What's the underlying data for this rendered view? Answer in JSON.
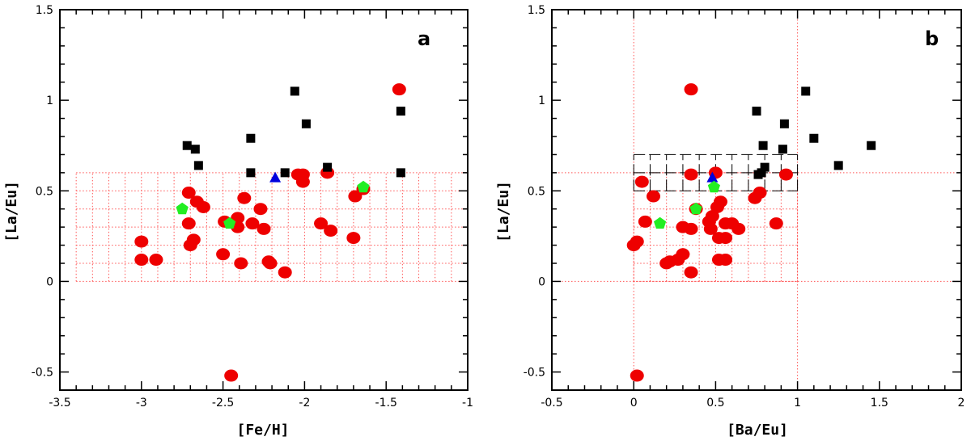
{
  "colors": {
    "red_circle": "#ee0000",
    "black_square": "#000000",
    "blue_triangle": "#0000dd",
    "green_pentagon": "#22ee22",
    "grid": "#ff5555",
    "box": "#000000"
  },
  "chart_data": [
    {
      "type": "scatter",
      "panel": "a",
      "xlabel": "[Fe/H]",
      "ylabel": "[La/Eu]",
      "xlim": [
        -3.5,
        -1
      ],
      "ylim": [
        -0.6,
        1.5
      ],
      "xticks": [
        -3.5,
        -3,
        -2.5,
        -2,
        -1.5,
        -1
      ],
      "xtick_labels": [
        "-3.5",
        "-3",
        "-2.5",
        "-2",
        "-1.5",
        "-1"
      ],
      "yticks": [
        -0.5,
        0,
        0.5,
        1,
        1.5
      ],
      "ytick_labels": [
        "-0.5",
        "0",
        "0.5",
        "1",
        "1.5"
      ],
      "shaded_grid": {
        "x": [
          -3.4,
          -1.0
        ],
        "y": [
          0.0,
          0.6
        ],
        "dx": 0.1,
        "dy": 0.1
      },
      "series": [
        {
          "name": "red circles",
          "marker": "circle",
          "color": "#ee0000",
          "points": [
            [
              -1.42,
              1.06
            ],
            [
              -1.86,
              0.6
            ],
            [
              -2.04,
              0.59
            ],
            [
              -2.01,
              0.59
            ],
            [
              -2.01,
              0.55
            ],
            [
              -1.64,
              0.51
            ],
            [
              -1.69,
              0.47
            ],
            [
              -2.71,
              0.49
            ],
            [
              -2.37,
              0.46
            ],
            [
              -2.66,
              0.44
            ],
            [
              -2.62,
              0.41
            ],
            [
              -2.27,
              0.4
            ],
            [
              -2.71,
              0.32
            ],
            [
              -2.49,
              0.33
            ],
            [
              -2.41,
              0.35
            ],
            [
              -2.41,
              0.3
            ],
            [
              -2.32,
              0.32
            ],
            [
              -2.25,
              0.29
            ],
            [
              -1.9,
              0.32
            ],
            [
              -1.84,
              0.28
            ],
            [
              -2.68,
              0.23
            ],
            [
              -2.7,
              0.2
            ],
            [
              -3.0,
              0.22
            ],
            [
              -1.7,
              0.24
            ],
            [
              -2.5,
              0.15
            ],
            [
              -3.0,
              0.12
            ],
            [
              -2.91,
              0.12
            ],
            [
              -2.39,
              0.1
            ],
            [
              -2.22,
              0.11
            ],
            [
              -2.21,
              0.1
            ],
            [
              -2.12,
              0.05
            ],
            [
              -2.45,
              -0.52
            ]
          ]
        },
        {
          "name": "black squares",
          "marker": "square",
          "color": "#000000",
          "points": [
            [
              -2.06,
              1.05
            ],
            [
              -1.41,
              0.94
            ],
            [
              -1.99,
              0.87
            ],
            [
              -2.33,
              0.79
            ],
            [
              -2.72,
              0.75
            ],
            [
              -2.67,
              0.73
            ],
            [
              -2.65,
              0.64
            ],
            [
              -1.86,
              0.63
            ],
            [
              -2.33,
              0.6
            ],
            [
              -2.12,
              0.6
            ],
            [
              -1.41,
              0.6
            ]
          ]
        },
        {
          "name": "blue triangle",
          "marker": "triangle",
          "color": "#0000dd",
          "points": [
            [
              -2.18,
              0.57
            ]
          ]
        },
        {
          "name": "green pentagons",
          "marker": "pentagon",
          "color": "#22ee22",
          "points": [
            [
              -1.64,
              0.52
            ],
            [
              -2.75,
              0.4
            ],
            [
              -2.46,
              0.32
            ]
          ]
        }
      ]
    },
    {
      "type": "scatter",
      "panel": "b",
      "xlabel": "[Ba/Eu]",
      "ylabel": "[La/Eu]",
      "xlim": [
        -0.5,
        2
      ],
      "ylim": [
        -0.6,
        1.5
      ],
      "xticks": [
        -0.5,
        0,
        0.5,
        1,
        1.5,
        2
      ],
      "xtick_labels": [
        "-0.5",
        "0",
        "0.5",
        "1",
        "1.5",
        "2"
      ],
      "yticks": [
        -0.5,
        0,
        0.5,
        1,
        1.5
      ],
      "ytick_labels": [
        "-0.5",
        "0",
        "0.5",
        "1",
        "1.5"
      ],
      "reference_lines": {
        "x": [
          0,
          1
        ],
        "y": [
          0,
          0.6
        ]
      },
      "shaded_grid": {
        "x": [
          0.0,
          1.0
        ],
        "y": [
          0.0,
          0.6
        ],
        "dx": 0.1,
        "dy": 0.1
      },
      "dashed_box_grid": {
        "x": [
          -0.0,
          1.0
        ],
        "y": [
          0.5,
          0.7
        ],
        "dx": 0.1,
        "dy": 0.1
      },
      "series": [
        {
          "name": "red circles",
          "marker": "circle",
          "color": "#ee0000",
          "points": [
            [
              0.35,
              1.06
            ],
            [
              0.35,
              0.59
            ],
            [
              0.5,
              0.6
            ],
            [
              0.93,
              0.59
            ],
            [
              0.05,
              0.55
            ],
            [
              0.12,
              0.47
            ],
            [
              0.77,
              0.49
            ],
            [
              0.74,
              0.46
            ],
            [
              0.53,
              0.44
            ],
            [
              0.51,
              0.41
            ],
            [
              0.48,
              0.36
            ],
            [
              0.38,
              0.4
            ],
            [
              0.46,
              0.33
            ],
            [
              0.47,
              0.29
            ],
            [
              0.56,
              0.32
            ],
            [
              0.3,
              0.3
            ],
            [
              0.35,
              0.29
            ],
            [
              0.6,
              0.32
            ],
            [
              0.64,
              0.29
            ],
            [
              0.87,
              0.32
            ],
            [
              0.07,
              0.33
            ],
            [
              0.52,
              0.24
            ],
            [
              0.56,
              0.24
            ],
            [
              0.02,
              0.22
            ],
            [
              0.0,
              0.2
            ],
            [
              0.3,
              0.15
            ],
            [
              0.27,
              0.12
            ],
            [
              0.22,
              0.11
            ],
            [
              0.2,
              0.1
            ],
            [
              0.52,
              0.12
            ],
            [
              0.56,
              0.12
            ],
            [
              0.35,
              0.05
            ],
            [
              0.02,
              -0.52
            ]
          ]
        },
        {
          "name": "black squares",
          "marker": "square",
          "color": "#000000",
          "points": [
            [
              1.05,
              1.05
            ],
            [
              0.75,
              0.94
            ],
            [
              0.92,
              0.87
            ],
            [
              1.1,
              0.79
            ],
            [
              0.79,
              0.75
            ],
            [
              1.45,
              0.75
            ],
            [
              0.91,
              0.73
            ],
            [
              1.25,
              0.64
            ],
            [
              0.8,
              0.63
            ],
            [
              0.78,
              0.6
            ],
            [
              0.76,
              0.59
            ]
          ]
        },
        {
          "name": "blue triangle",
          "marker": "triangle",
          "color": "#0000dd",
          "points": [
            [
              0.48,
              0.57
            ]
          ]
        },
        {
          "name": "green pentagons",
          "marker": "pentagon",
          "color": "#22ee22",
          "points": [
            [
              0.49,
              0.52
            ],
            [
              0.38,
              0.4
            ],
            [
              0.16,
              0.32
            ]
          ]
        }
      ]
    }
  ]
}
